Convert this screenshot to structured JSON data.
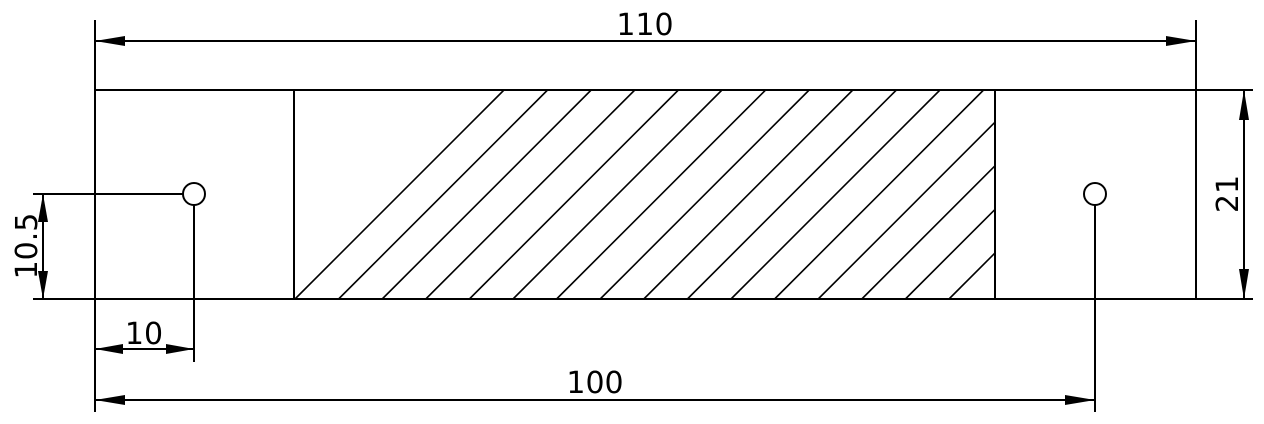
{
  "dimensions": {
    "overall_length": "110",
    "height": "21",
    "hole_offset_y": "10.5",
    "hole_offset_x": "10",
    "hole_spacing": "100"
  },
  "colors": {
    "line": "#000000",
    "background": "#ffffff"
  }
}
